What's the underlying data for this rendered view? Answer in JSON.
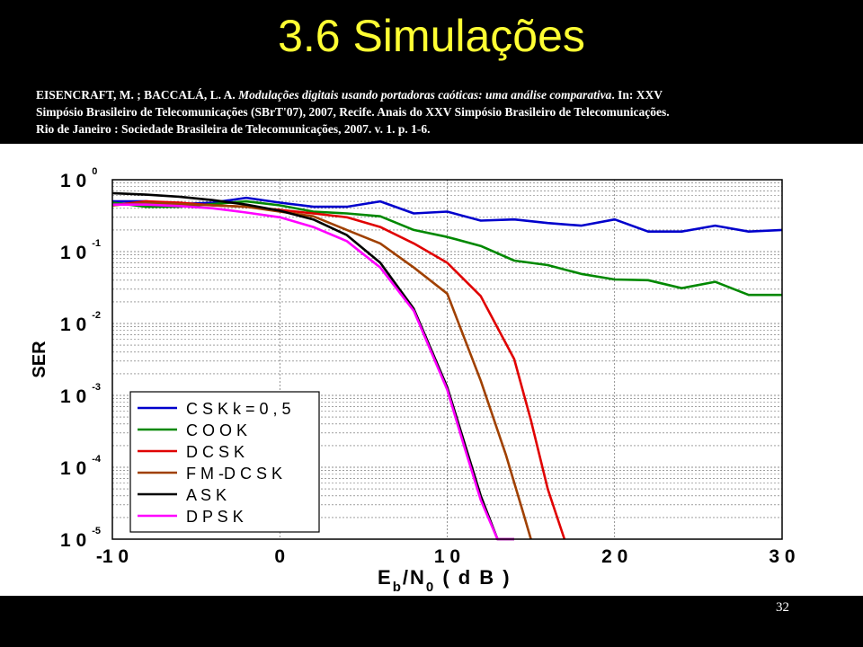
{
  "slide": {
    "title": "3.6 Simulações",
    "reference": {
      "authors": "EISENCRAFT, M. ; BACCALÁ, L. A.",
      "work_title": "Modulações digitais usando portadoras caóticas: uma análise comparativa",
      "rest_line1": ". In: XXV",
      "line2": "Simpósio Brasileiro de Telecomunicações (SBrT'07), 2007, Recife. Anais do XXV Simpósio Brasileiro de Telecomunicações.",
      "line3": "Rio de Janeiro : Sociedade Brasileira de Telecomunicações, 2007. v. 1. p. 1-6."
    },
    "page_number": "32"
  },
  "chart_data": {
    "type": "line",
    "title": "",
    "xlabel": {
      "main": "E",
      "sub": "b",
      "mid": "/N",
      "sub2": "0",
      "end": "  ( d B )"
    },
    "ylabel": "SER",
    "y_scale": "log",
    "xlim": [
      -10,
      30
    ],
    "ylim": [
      1e-05,
      1
    ],
    "grid": true,
    "legend_position": "bottom-left",
    "x_ticks": [
      {
        "value": -10,
        "label": "-1 0"
      },
      {
        "value": 0,
        "label": "0"
      },
      {
        "value": 10,
        "label": "1 0"
      },
      {
        "value": 20,
        "label": "2 0"
      },
      {
        "value": 30,
        "label": "3 0"
      }
    ],
    "y_ticks": [
      {
        "value": 1,
        "mantissa": "1 0",
        "exponent": "0"
      },
      {
        "value": 0.1,
        "mantissa": "1 0",
        "exponent": "-1"
      },
      {
        "value": 0.01,
        "mantissa": "1 0",
        "exponent": "-2"
      },
      {
        "value": 0.001,
        "mantissa": "1 0",
        "exponent": "-3"
      },
      {
        "value": 0.0001,
        "mantissa": "1 0",
        "exponent": "-4"
      },
      {
        "value": 1e-05,
        "mantissa": "1 0",
        "exponent": "-5"
      }
    ],
    "series": [
      {
        "name": "C S K   k = 0 , 5",
        "color": "#0000cc",
        "x": [
          -10,
          -8,
          -6,
          -4,
          -2,
          0,
          2,
          4,
          6,
          8,
          10,
          12,
          14,
          16,
          18,
          20,
          22,
          24,
          26,
          28,
          30
        ],
        "y": [
          0.5,
          0.5,
          0.46,
          0.48,
          0.56,
          0.48,
          0.42,
          0.42,
          0.5,
          0.34,
          0.36,
          0.27,
          0.28,
          0.25,
          0.23,
          0.28,
          0.19,
          0.19,
          0.23,
          0.19,
          0.2
        ]
      },
      {
        "name": "C O O K",
        "color": "#008800",
        "x": [
          -10,
          -8,
          -6,
          -4,
          -2,
          0,
          2,
          4,
          6,
          8,
          10,
          12,
          14,
          16,
          18,
          20,
          22,
          24,
          26,
          28,
          30
        ],
        "y": [
          0.48,
          0.42,
          0.42,
          0.46,
          0.5,
          0.44,
          0.36,
          0.34,
          0.31,
          0.2,
          0.16,
          0.12,
          0.075,
          0.065,
          0.049,
          0.041,
          0.04,
          0.031,
          0.038,
          0.025,
          0.025
        ]
      },
      {
        "name": "D C S K",
        "color": "#e00000",
        "x": [
          -10,
          -8,
          -6,
          -4,
          -2,
          0,
          2,
          4,
          6,
          8,
          10,
          12,
          14,
          15,
          16,
          17
        ],
        "y": [
          0.44,
          0.5,
          0.48,
          0.44,
          0.42,
          0.38,
          0.34,
          0.3,
          0.22,
          0.13,
          0.07,
          0.024,
          0.0032,
          0.00045,
          5e-05,
          1e-05
        ]
      },
      {
        "name": "F M -D C S K",
        "color": "#a04000",
        "x": [
          -10,
          -8,
          -6,
          -4,
          -2,
          0,
          2,
          4,
          6,
          8,
          10,
          12,
          13.5,
          14.5,
          15
        ],
        "y": [
          0.44,
          0.48,
          0.46,
          0.44,
          0.42,
          0.36,
          0.31,
          0.2,
          0.13,
          0.06,
          0.026,
          0.0016,
          0.00015,
          2.5e-05,
          1e-05
        ]
      },
      {
        "name": "A S K",
        "color": "#000000",
        "x": [
          -10,
          -8,
          -6,
          -4,
          -2,
          0,
          2,
          4,
          6,
          8,
          10,
          11,
          12,
          13,
          14
        ],
        "y": [
          0.65,
          0.62,
          0.58,
          0.52,
          0.45,
          0.37,
          0.28,
          0.17,
          0.07,
          0.016,
          0.0013,
          0.00023,
          4e-05,
          1e-05,
          1e-05
        ]
      },
      {
        "name": "D P S K",
        "color": "#ff00ff",
        "x": [
          -10,
          -8,
          -6,
          -4,
          -2,
          0,
          2,
          4,
          6,
          8,
          10,
          11,
          12,
          13,
          14
        ],
        "y": [
          0.45,
          0.45,
          0.43,
          0.4,
          0.35,
          0.3,
          0.22,
          0.14,
          0.06,
          0.015,
          0.0012,
          0.0002,
          3.5e-05,
          1e-05,
          1e-05
        ]
      }
    ]
  }
}
